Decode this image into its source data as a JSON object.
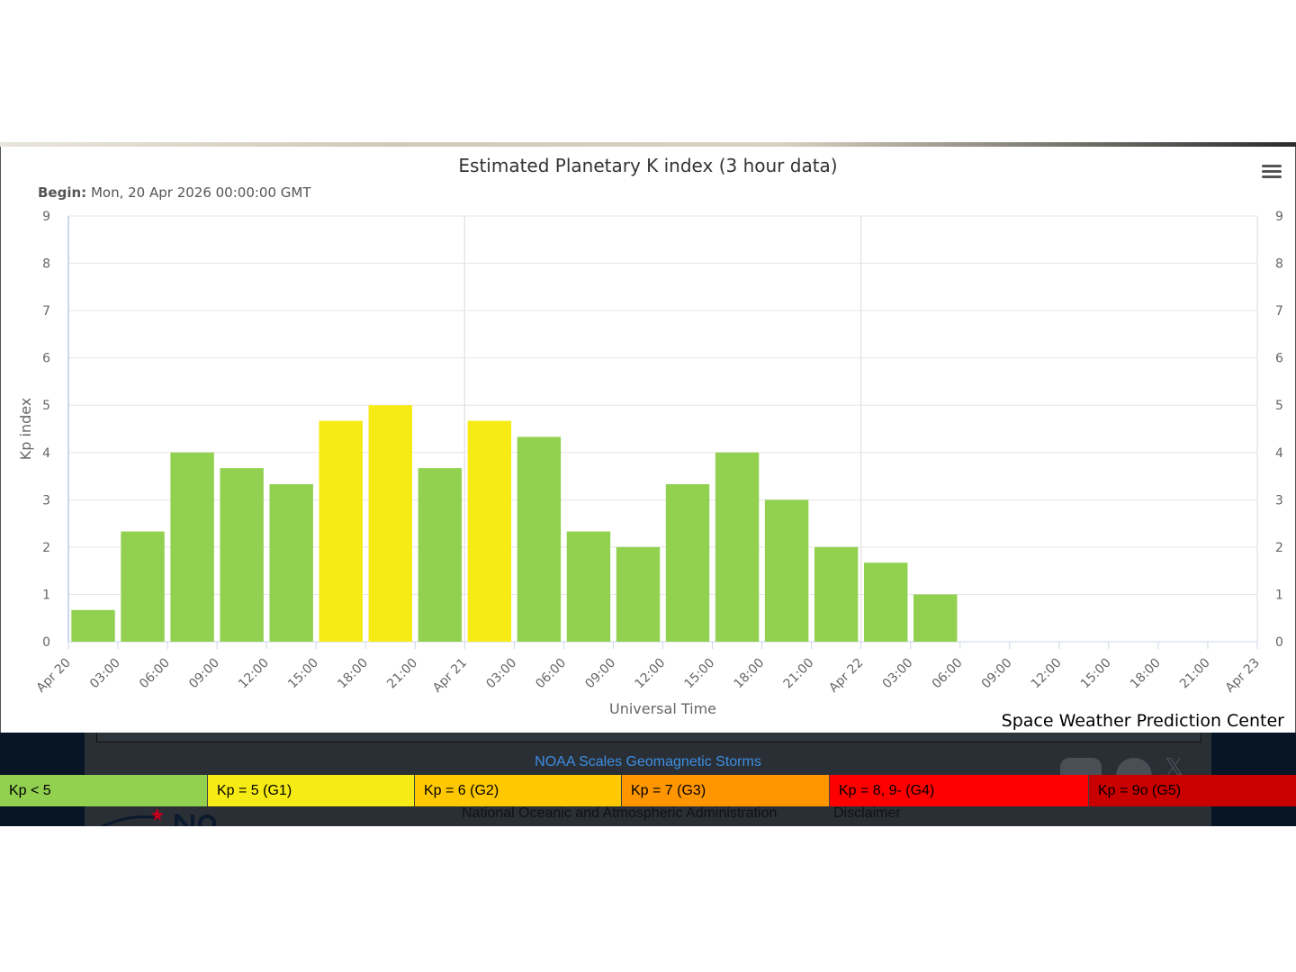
{
  "header": {
    "title": "Estimated Planetary K index (3 hour data)",
    "subtitle_label": "Begin:",
    "subtitle_value": "Mon, 20 Apr 2026 00:00:00 GMT",
    "credits": "Space Weather Prediction Center"
  },
  "chart_data": {
    "type": "bar",
    "title": "Estimated Planetary K index (3 hour data)",
    "xlabel": "Universal Time",
    "ylabel": "Kp index",
    "ylim": [
      0,
      9
    ],
    "y_ticks": [
      "0",
      "1",
      "2",
      "3",
      "4",
      "5",
      "6",
      "7",
      "8",
      "9"
    ],
    "x_ticks": [
      "Apr 20",
      "03:00",
      "06:00",
      "09:00",
      "12:00",
      "15:00",
      "18:00",
      "21:00",
      "Apr 21",
      "03:00",
      "06:00",
      "09:00",
      "12:00",
      "15:00",
      "18:00",
      "21:00",
      "Apr 22",
      "03:00",
      "06:00",
      "09:00",
      "12:00",
      "15:00",
      "18:00",
      "21:00",
      "Apr 23"
    ],
    "categories": [
      "Apr 20 00:00",
      "Apr 20 03:00",
      "Apr 20 06:00",
      "Apr 20 09:00",
      "Apr 20 12:00",
      "Apr 20 15:00",
      "Apr 20 18:00",
      "Apr 20 21:00",
      "Apr 21 00:00",
      "Apr 21 03:00",
      "Apr 21 06:00",
      "Apr 21 09:00",
      "Apr 21 12:00",
      "Apr 21 15:00",
      "Apr 21 18:00",
      "Apr 21 21:00",
      "Apr 22 00:00",
      "Apr 22 03:00"
    ],
    "values": [
      0.67,
      2.33,
      4.0,
      3.67,
      3.33,
      4.67,
      5.0,
      3.67,
      4.67,
      4.33,
      2.33,
      2.0,
      3.33,
      4.0,
      3.0,
      2.0,
      1.67,
      1.0
    ],
    "colors": {
      "below_5": "#92d050",
      "g1": "#f6eb14"
    },
    "grid": true,
    "dual_y_axis": true
  },
  "footer": {
    "scales_link": "NOAA Scales Geomagnetic Storms",
    "legend": [
      {
        "label": "Kp < 5",
        "color": "#92d050"
      },
      {
        "label": "Kp = 5 (G1)",
        "color": "#f6eb14"
      },
      {
        "label": "Kp = 6 (G2)",
        "color": "#ffc800"
      },
      {
        "label": "Kp = 7 (G3)",
        "color": "#ff9600"
      },
      {
        "label": "Kp = 8, 9- (G4)",
        "color": "#ff0000"
      },
      {
        "label": "Kp = 9o (G5)",
        "color": "#c80000"
      }
    ],
    "agency": "National Oceanic and Atmospheric Administration",
    "disclaimer": "Disclaimer"
  }
}
